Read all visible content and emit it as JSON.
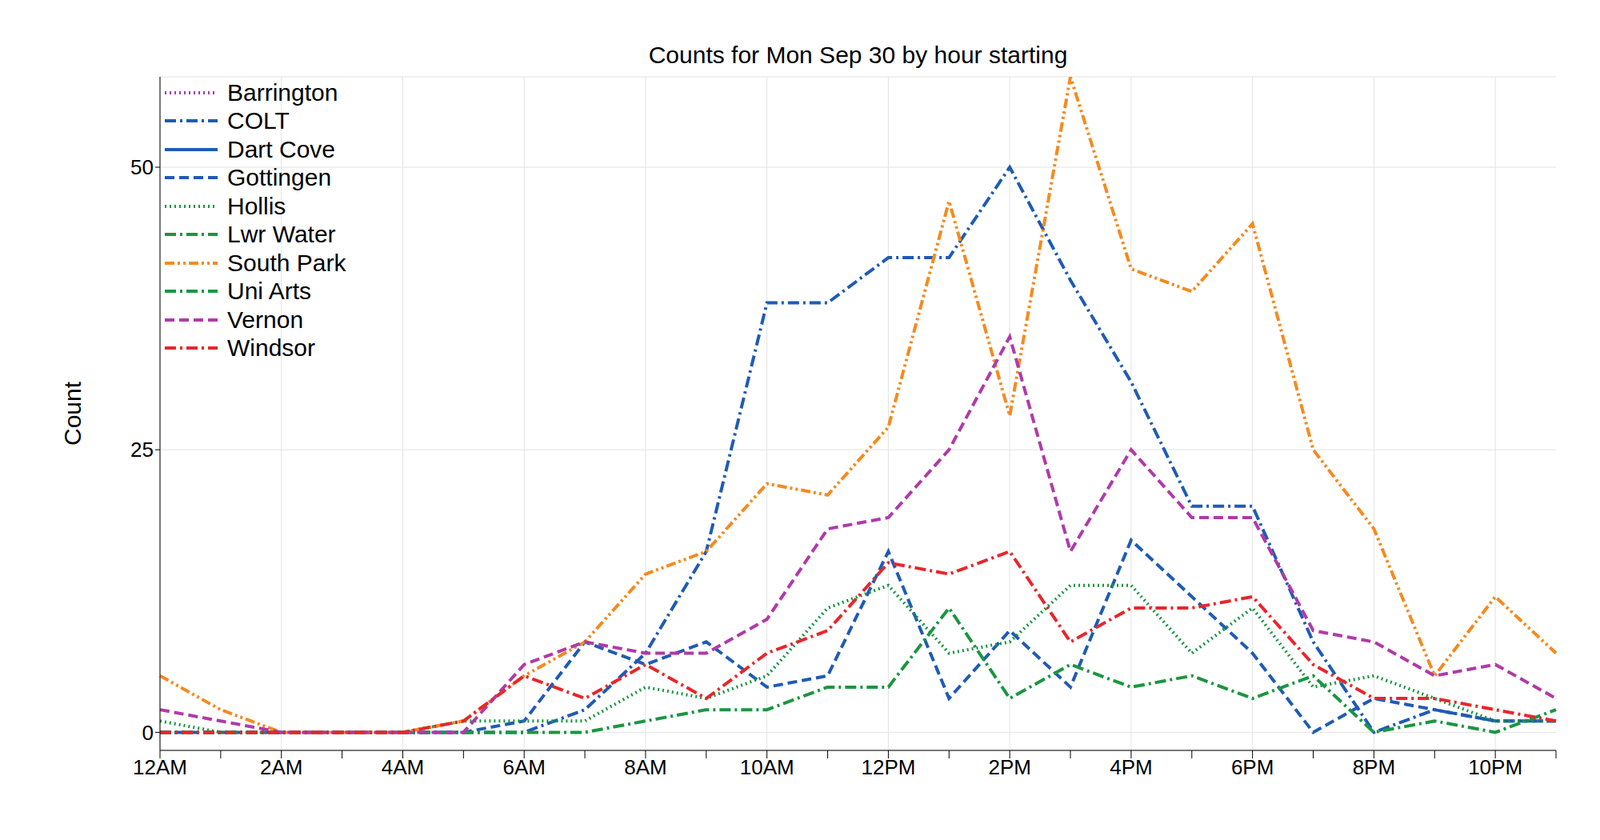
{
  "chart_data": {
    "type": "line",
    "title": "Counts for Mon Sep 30 by hour starting",
    "y_label": "Count",
    "categories": [
      "12AM",
      null,
      "2AM",
      null,
      "4AM",
      null,
      "6AM",
      null,
      "8AM",
      null,
      "10AM",
      null,
      "12PM",
      null,
      "2PM",
      null,
      "4PM",
      null,
      "6PM",
      null,
      "8PM",
      null,
      "10PM",
      null
    ],
    "ylim": [
      -1.6,
      58
    ],
    "yticks": [
      0,
      25,
      50
    ],
    "grid": true,
    "legend": "upper left",
    "series": [
      {
        "name": "Barrington",
        "color": "#9c3fb5",
        "line_style": "dotted",
        "values": [
          null,
          null,
          null,
          null,
          null,
          null,
          null,
          null,
          null,
          null,
          null,
          null,
          null,
          null,
          null,
          null,
          null,
          null,
          null,
          null,
          null,
          null,
          null,
          null
        ]
      },
      {
        "name": "COLT",
        "color": "#1f5bb5",
        "line_style": "dashdot",
        "values": [
          0,
          0,
          0,
          0,
          0,
          0,
          0,
          2,
          7,
          16,
          38,
          38,
          42,
          42,
          50,
          40,
          31,
          20,
          20,
          8,
          0,
          2,
          1,
          1
        ]
      },
      {
        "name": "Dart Cove",
        "color": "#1f5bb5",
        "line_style": "solid",
        "values": [
          null,
          null,
          null,
          null,
          null,
          null,
          null,
          null,
          null,
          null,
          null,
          null,
          null,
          null,
          null,
          null,
          null,
          null,
          null,
          null,
          null,
          null,
          null,
          null
        ]
      },
      {
        "name": "Gottingen",
        "color": "#1f5bb5",
        "line_style": "dashed",
        "values": [
          0,
          0,
          0,
          0,
          0,
          0,
          1,
          8,
          6,
          8,
          4,
          5,
          16,
          3,
          9,
          4,
          17,
          12,
          7,
          0,
          3,
          2,
          1,
          1
        ]
      },
      {
        "name": "Hollis",
        "color": "#1a9641",
        "line_style": "dotted",
        "values": [
          1,
          0,
          0,
          0,
          0,
          1,
          1,
          1,
          4,
          3,
          5,
          11,
          13,
          7,
          8,
          13,
          13,
          7,
          11,
          4,
          5,
          3,
          1,
          1
        ]
      },
      {
        "name": "Lwr Water",
        "color": "#1a9641",
        "line_style": "dashdot",
        "values": [
          null,
          null,
          null,
          null,
          null,
          null,
          null,
          null,
          null,
          null,
          null,
          null,
          null,
          null,
          null,
          null,
          null,
          null,
          null,
          null,
          null,
          null,
          null,
          null
        ]
      },
      {
        "name": "South Park",
        "color": "#f58a1f",
        "line_style": "dashdotdot",
        "values": [
          5,
          2,
          0,
          0,
          0,
          1,
          5,
          8,
          14,
          16,
          22,
          21,
          27,
          47,
          28,
          58,
          41,
          39,
          45,
          25,
          18,
          5,
          12,
          7
        ]
      },
      {
        "name": "Uni Arts",
        "color": "#1a9641",
        "line_style": "dashdot",
        "values": [
          0,
          0,
          0,
          0,
          0,
          0,
          0,
          0,
          1,
          2,
          2,
          4,
          4,
          11,
          3,
          6,
          4,
          5,
          3,
          5,
          0,
          1,
          0,
          2
        ]
      },
      {
        "name": "Vernon",
        "color": "#b03aa8",
        "line_style": "dashed",
        "values": [
          2,
          1,
          0,
          0,
          0,
          0,
          6,
          8,
          7,
          7,
          10,
          18,
          19,
          25,
          35,
          16,
          25,
          19,
          19,
          9,
          8,
          5,
          6,
          3
        ]
      },
      {
        "name": "Windsor",
        "color": "#e8262b",
        "line_style": "dashdot",
        "values": [
          0,
          0,
          0,
          0,
          0,
          1,
          5,
          3,
          6,
          3,
          7,
          9,
          15,
          14,
          16,
          8,
          11,
          11,
          12,
          6,
          3,
          3,
          2,
          1
        ]
      }
    ]
  }
}
